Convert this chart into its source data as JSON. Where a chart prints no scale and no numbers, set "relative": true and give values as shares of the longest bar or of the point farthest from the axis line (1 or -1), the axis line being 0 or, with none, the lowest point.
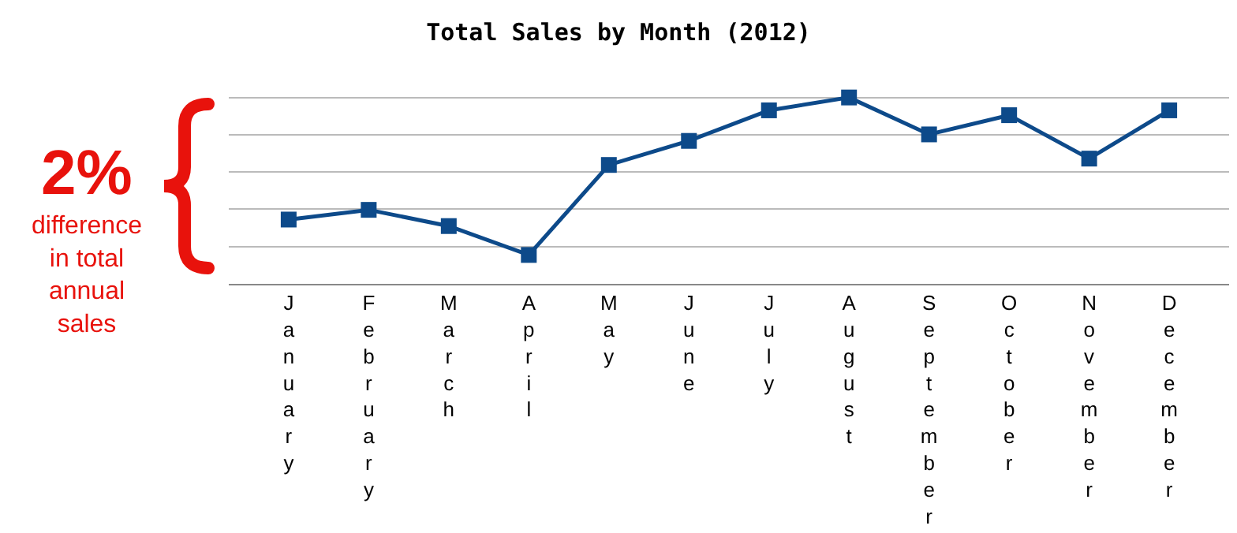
{
  "chart_data": {
    "type": "line",
    "title": "Total Sales by Month (2012)",
    "relative": true,
    "categories": [
      "January",
      "February",
      "March",
      "April",
      "May",
      "June",
      "July",
      "August",
      "September",
      "October",
      "November",
      "December"
    ],
    "series": [
      {
        "color": "#0d4a8a",
        "values": [
          0.345,
          0.397,
          0.31,
          0.155,
          0.638,
          0.767,
          0.931,
          1,
          0.802,
          0.905,
          0.672,
          0.931
        ]
      }
    ],
    "annotations": [
      "2%",
      "difference in total annual sales"
    ],
    "grid": "y",
    "marker": "square",
    "line_style": "solid"
  }
}
